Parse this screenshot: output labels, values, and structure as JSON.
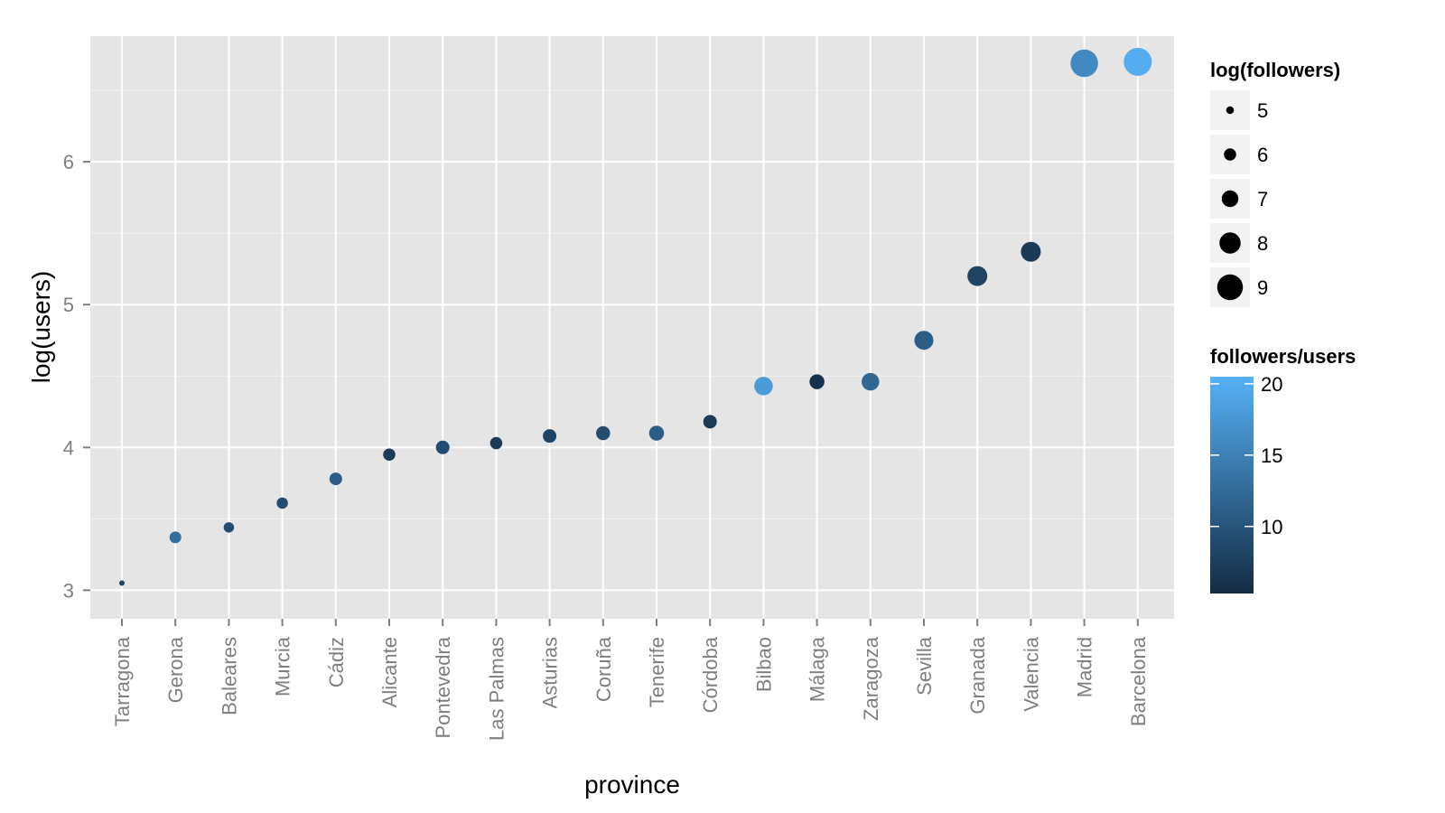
{
  "chart_data": {
    "type": "scatter",
    "xlabel": "province",
    "ylabel": "log(users)",
    "ylim": [
      2.8,
      6.88
    ],
    "yticks": [
      "3",
      "4",
      "5",
      "6"
    ],
    "grid": true,
    "legend_position": "right",
    "categories": [
      "Tarragona",
      "Gerona",
      "Baleares",
      "Murcia",
      "Cádiz",
      "Alicante",
      "Pontevedra",
      "Las Palmas",
      "Asturias",
      "Coruña",
      "Tenerife",
      "Córdoba",
      "Bilbao",
      "Málaga",
      "Zaragoza",
      "Sevilla",
      "Granada",
      "Valencia",
      "Madrid",
      "Barcelona"
    ],
    "points": [
      {
        "x": "Tarragona",
        "y": 3.05,
        "log_followers": 4.5,
        "ratio": 8
      },
      {
        "x": "Gerona",
        "y": 3.37,
        "log_followers": 5.9,
        "ratio": 13
      },
      {
        "x": "Baleares",
        "y": 3.44,
        "log_followers": 5.6,
        "ratio": 9
      },
      {
        "x": "Murcia",
        "y": 3.61,
        "log_followers": 5.8,
        "ratio": 9
      },
      {
        "x": "Cádiz",
        "y": 3.78,
        "log_followers": 6.1,
        "ratio": 11
      },
      {
        "x": "Alicante",
        "y": 3.95,
        "log_followers": 6.0,
        "ratio": 7
      },
      {
        "x": "Pontevedra",
        "y": 4.0,
        "log_followers": 6.3,
        "ratio": 9
      },
      {
        "x": "Las Palmas",
        "y": 4.03,
        "log_followers": 6.0,
        "ratio": 7
      },
      {
        "x": "Asturias",
        "y": 4.08,
        "log_followers": 6.3,
        "ratio": 8
      },
      {
        "x": "Coruña",
        "y": 4.1,
        "log_followers": 6.4,
        "ratio": 9
      },
      {
        "x": "Tenerife",
        "y": 4.1,
        "log_followers": 6.6,
        "ratio": 11
      },
      {
        "x": "Córdoba",
        "y": 4.18,
        "log_followers": 6.3,
        "ratio": 7
      },
      {
        "x": "Bilbao",
        "y": 4.43,
        "log_followers": 7.4,
        "ratio": 18
      },
      {
        "x": "Málaga",
        "y": 4.46,
        "log_followers": 6.6,
        "ratio": 6
      },
      {
        "x": "Zaragoza",
        "y": 4.46,
        "log_followers": 7.2,
        "ratio": 12
      },
      {
        "x": "Sevilla",
        "y": 4.75,
        "log_followers": 7.5,
        "ratio": 11
      },
      {
        "x": "Granada",
        "y": 5.2,
        "log_followers": 7.7,
        "ratio": 8
      },
      {
        "x": "Valencia",
        "y": 5.37,
        "log_followers": 7.7,
        "ratio": 7
      },
      {
        "x": "Madrid",
        "y": 6.69,
        "log_followers": 9.4,
        "ratio": 16
      },
      {
        "x": "Barcelona",
        "y": 6.7,
        "log_followers": 9.5,
        "ratio": 20
      }
    ],
    "size_legend": {
      "title": "log(followers)",
      "values": [
        5,
        6,
        7,
        8,
        9
      ],
      "labels": [
        "5",
        "6",
        "7",
        "8",
        "9"
      ]
    },
    "color_legend": {
      "title": "followers/users",
      "min": 5.3,
      "max": 20.5,
      "ticks": [
        10,
        15,
        20
      ],
      "labels": [
        "10",
        "15",
        "20"
      ],
      "color_low": "#132b43",
      "color_high": "#56b1f7"
    },
    "panel_background": "#e5e5e5",
    "grid_color": "#ffffff"
  }
}
